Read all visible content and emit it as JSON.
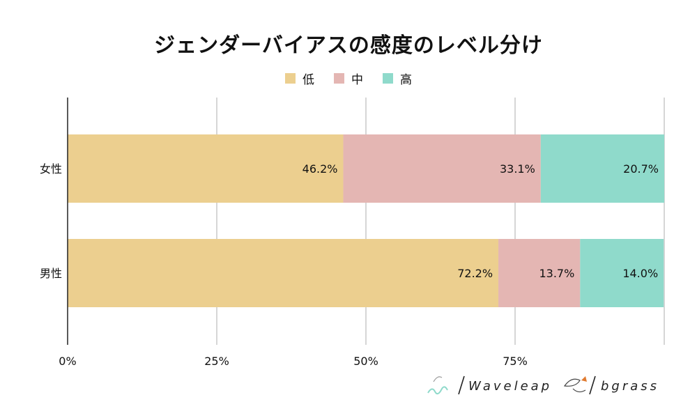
{
  "chart_data": {
    "type": "bar",
    "orientation": "horizontal",
    "stacked": true,
    "title": "ジェンダーバイアスの感度のレベル分け",
    "categories": [
      "女性",
      "男性"
    ],
    "series": [
      {
        "name": "低",
        "color": "#eccf8f",
        "values": [
          46.2,
          72.2
        ],
        "labels": [
          "46.2%",
          "72.2%"
        ]
      },
      {
        "name": "中",
        "color": "#e4b6b3",
        "values": [
          33.1,
          13.7
        ],
        "labels": [
          "33.1%",
          "13.7%"
        ]
      },
      {
        "name": "高",
        "color": "#8fdacb",
        "values": [
          20.7,
          14.0
        ],
        "labels": [
          "20.7%",
          "14.0%"
        ]
      }
    ],
    "xlim": [
      0,
      100
    ],
    "xticks": [
      0,
      25,
      50,
      75,
      100
    ],
    "xtick_labels": [
      "0%",
      "25%",
      "50%",
      "75%",
      ""
    ],
    "grid": true,
    "legend_position": "top"
  },
  "branding": {
    "logo1_text": "Waveleap",
    "logo2_text": "bgrass"
  }
}
